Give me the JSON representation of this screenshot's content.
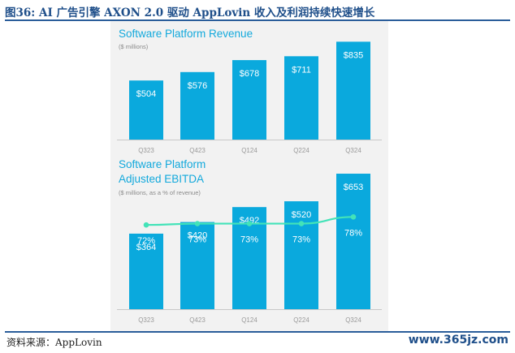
{
  "figure": {
    "title": "图36: AI 广告引擎 AXON 2.0 驱动 AppLovin 收入及利润持续快速增长",
    "source": "资料来源：AppLovin",
    "watermark": "www.365jz.com"
  },
  "colors": {
    "bar": "#0aa9dd",
    "line": "#43e3b8",
    "title_text": "#13a9dc",
    "subtitle_text": "#8a8a8a",
    "tick_text": "#9a9a9a",
    "header_text": "#1f4f8a"
  },
  "chart_data": [
    {
      "type": "bar",
      "title": "Software Platform Revenue",
      "subtitle": "($ millions)",
      "categories": [
        "Q323",
        "Q423",
        "Q124",
        "Q224",
        "Q324"
      ],
      "values": [
        504,
        576,
        678,
        711,
        835
      ],
      "value_labels": [
        "$504",
        "$576",
        "$678",
        "$711",
        "$835"
      ],
      "ylim": [
        0,
        900
      ]
    },
    {
      "type": "bar",
      "title_lines": [
        "Software Platform",
        "Adjusted EBITDA"
      ],
      "subtitle": "($ millions, as a % of revenue)",
      "categories": [
        "Q323",
        "Q423",
        "Q124",
        "Q224",
        "Q324"
      ],
      "values": [
        364,
        420,
        492,
        520,
        653
      ],
      "value_labels": [
        "$364",
        "$420",
        "$492",
        "$520",
        "$653"
      ],
      "ylim": [
        0,
        700
      ],
      "line_series": {
        "type": "line",
        "values": [
          72,
          73,
          73,
          73,
          78
        ],
        "labels": [
          "72%",
          "73%",
          "73%",
          "73%",
          "78%"
        ],
        "ylim": [
          0,
          100
        ]
      }
    }
  ]
}
